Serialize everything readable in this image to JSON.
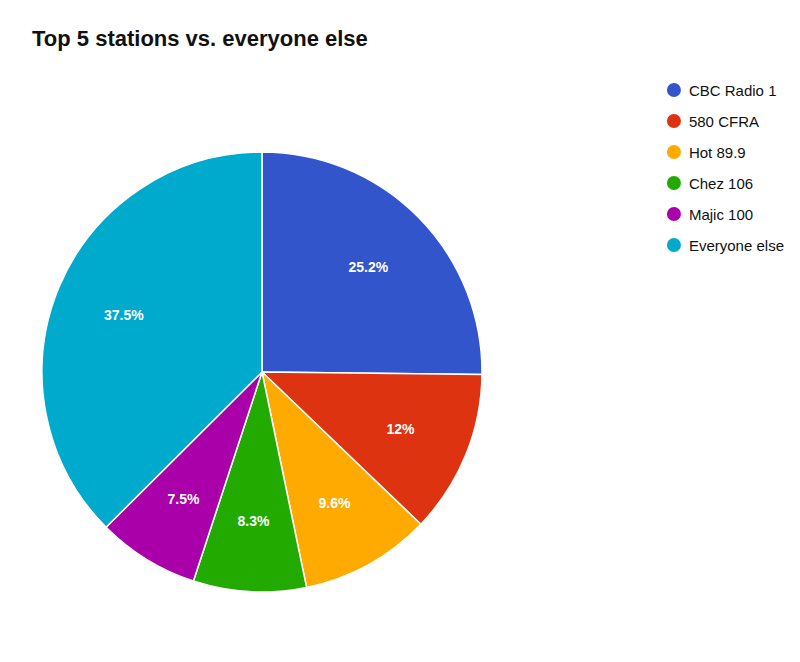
{
  "chart_data": {
    "type": "pie",
    "title": "Top 5 stations vs. everyone else",
    "categories": [
      "CBC Radio 1",
      "580 CFRA",
      "Hot 89.9",
      "Chez 106",
      "Majic 100",
      "Everyone else"
    ],
    "values": [
      25.2,
      12,
      9.6,
      8.3,
      7.5,
      37.5
    ],
    "value_labels": [
      "25.2%",
      "12%",
      "9.6%",
      "8.3%",
      "7.5%",
      "37.5%"
    ],
    "colors": [
      "#3355cc",
      "#dd3311",
      "#ffaa00",
      "#22aa00",
      "#aa00aa",
      "#00aacc"
    ],
    "data_labels": true,
    "legend": "right"
  }
}
